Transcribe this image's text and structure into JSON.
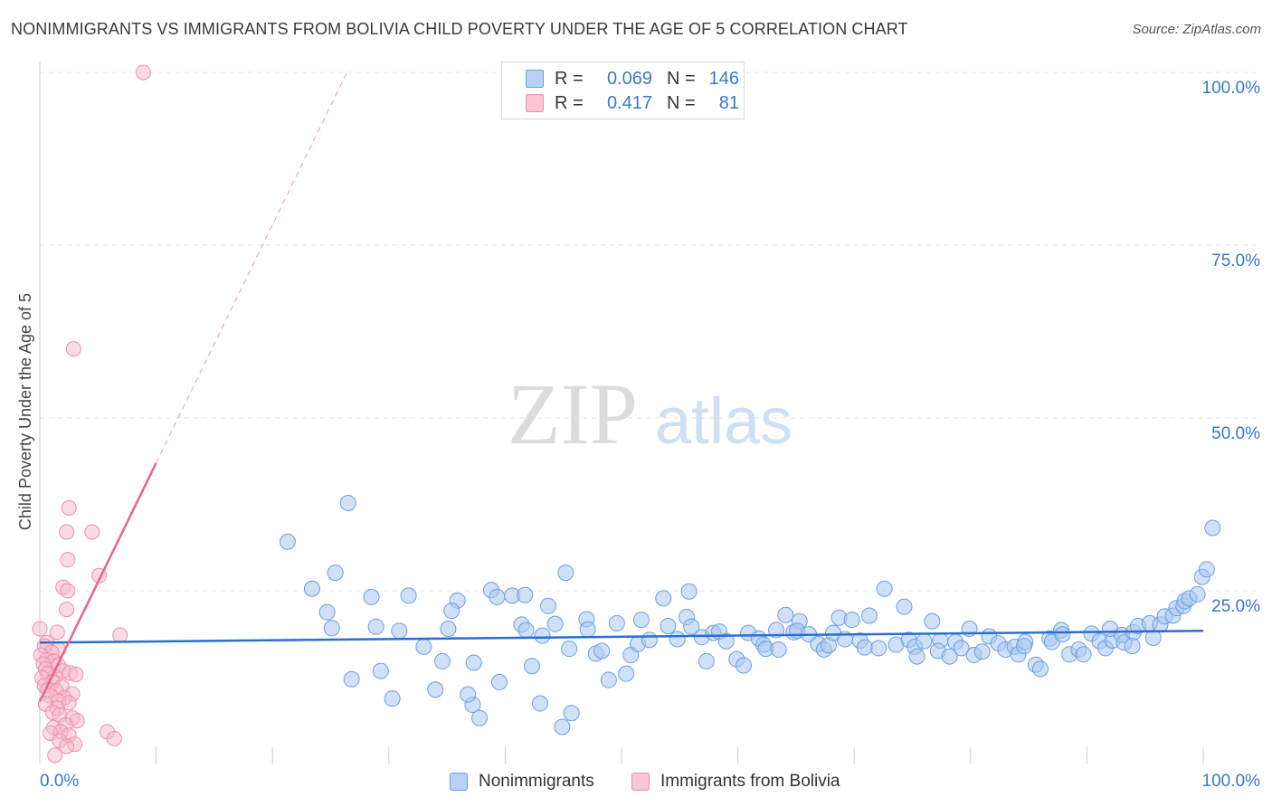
{
  "header": {
    "title": "NONIMMIGRANTS VS IMMIGRANTS FROM BOLIVIA CHILD POVERTY UNDER THE AGE OF 5 CORRELATION CHART",
    "source": "Source: ZipAtlas.com"
  },
  "colors": {
    "blue_fill": "#a9c8f0",
    "blue_stroke": "#6b9fe0",
    "blue_line": "#2a6fd1",
    "pink_fill": "#f6b8c9",
    "pink_stroke": "#ec8fab",
    "pink_line": "#e8648f",
    "axis_label_blue": "#3a78c9"
  },
  "legend": {
    "r_label": "R =",
    "n_label": "N =",
    "series": [
      {
        "r": "0.069",
        "n": "146"
      },
      {
        "r": "0.417",
        "n": "81"
      }
    ]
  },
  "bottom_legend": {
    "items": [
      "Nonimmigrants",
      "Immigrants from Bolivia"
    ]
  },
  "watermark": {
    "zip": "ZIP",
    "atlas": "atlas"
  },
  "chart_data": {
    "type": "scatter",
    "title": "NONIMMIGRANTS VS IMMIGRANTS FROM BOLIVIA CHILD POVERTY UNDER THE AGE OF 5 CORRELATION CHART",
    "xlabel": "",
    "ylabel": "Child Poverty Under the Age of 5",
    "xlim": [
      0,
      100
    ],
    "ylim": [
      0,
      100
    ],
    "x_tick_labels": [
      "0.0%",
      "100.0%"
    ],
    "y_tick_labels": [
      "25.0%",
      "50.0%",
      "75.0%",
      "100.0%"
    ],
    "y_ticks": [
      25,
      50,
      75,
      100
    ],
    "grid": true,
    "series": [
      {
        "name": "Nonimmigrants",
        "r": 0.069,
        "n": 146,
        "trend": {
          "x": [
            0,
            100
          ],
          "y": [
            17.5,
            19.2
          ]
        },
        "points": [
          [
            21.3,
            32.1
          ],
          [
            26.5,
            37.7
          ],
          [
            25.4,
            27.6
          ],
          [
            24.7,
            21.9
          ],
          [
            25.1,
            19.6
          ],
          [
            23.4,
            25.3
          ],
          [
            26.8,
            12.2
          ],
          [
            28.5,
            24.1
          ],
          [
            29.3,
            13.4
          ],
          [
            28.9,
            19.8
          ],
          [
            30.3,
            9.4
          ],
          [
            30.9,
            19.2
          ],
          [
            31.7,
            24.3
          ],
          [
            33.0,
            16.9
          ],
          [
            34.0,
            10.7
          ],
          [
            34.6,
            14.8
          ],
          [
            35.1,
            19.5
          ],
          [
            35.9,
            23.6
          ],
          [
            35.4,
            22.1
          ],
          [
            37.2,
            8.5
          ],
          [
            37.3,
            14.6
          ],
          [
            37.8,
            6.6
          ],
          [
            36.8,
            10.0
          ],
          [
            38.8,
            25.1
          ],
          [
            39.3,
            24.1
          ],
          [
            39.5,
            11.8
          ],
          [
            40.6,
            24.3
          ],
          [
            41.4,
            20.1
          ],
          [
            41.7,
            24.4
          ],
          [
            41.8,
            19.3
          ],
          [
            42.3,
            14.1
          ],
          [
            43.2,
            18.5
          ],
          [
            43.7,
            22.8
          ],
          [
            43.0,
            8.7
          ],
          [
            44.3,
            20.2
          ],
          [
            45.2,
            27.6
          ],
          [
            44.9,
            5.3
          ],
          [
            45.7,
            7.3
          ],
          [
            45.5,
            16.6
          ],
          [
            47.0,
            20.9
          ],
          [
            47.1,
            19.4
          ],
          [
            47.8,
            15.9
          ],
          [
            48.3,
            16.3
          ],
          [
            48.9,
            12.1
          ],
          [
            49.6,
            20.3
          ],
          [
            50.4,
            13.0
          ],
          [
            50.8,
            15.7
          ],
          [
            51.7,
            20.8
          ],
          [
            51.4,
            17.3
          ],
          [
            52.4,
            17.9
          ],
          [
            53.6,
            23.9
          ],
          [
            54.0,
            19.9
          ],
          [
            54.8,
            18.0
          ],
          [
            55.6,
            21.2
          ],
          [
            55.8,
            24.9
          ],
          [
            56.0,
            19.8
          ],
          [
            56.9,
            18.3
          ],
          [
            57.3,
            14.8
          ],
          [
            57.9,
            18.9
          ],
          [
            58.4,
            19.1
          ],
          [
            59.0,
            17.7
          ],
          [
            59.9,
            15.1
          ],
          [
            60.5,
            14.2
          ],
          [
            60.9,
            18.9
          ],
          [
            61.8,
            18.1
          ],
          [
            62.2,
            17.2
          ],
          [
            62.4,
            16.6
          ],
          [
            63.3,
            19.3
          ],
          [
            63.5,
            16.5
          ],
          [
            64.1,
            21.5
          ],
          [
            64.8,
            19.0
          ],
          [
            65.3,
            20.6
          ],
          [
            65.1,
            19.2
          ],
          [
            66.1,
            18.7
          ],
          [
            66.9,
            17.3
          ],
          [
            67.4,
            16.5
          ],
          [
            67.8,
            17.1
          ],
          [
            68.2,
            18.9
          ],
          [
            68.7,
            21.1
          ],
          [
            69.2,
            18.0
          ],
          [
            69.8,
            20.8
          ],
          [
            70.5,
            17.8
          ],
          [
            70.9,
            16.8
          ],
          [
            71.3,
            21.4
          ],
          [
            72.6,
            25.3
          ],
          [
            72.1,
            16.7
          ],
          [
            73.6,
            17.2
          ],
          [
            74.3,
            22.7
          ],
          [
            74.7,
            17.9
          ],
          [
            75.2,
            16.9
          ],
          [
            75.4,
            15.5
          ],
          [
            76.0,
            17.7
          ],
          [
            76.7,
            20.6
          ],
          [
            77.4,
            17.8
          ],
          [
            77.2,
            16.3
          ],
          [
            78.2,
            15.5
          ],
          [
            78.7,
            17.6
          ],
          [
            79.2,
            16.7
          ],
          [
            79.9,
            19.5
          ],
          [
            80.3,
            15.7
          ],
          [
            81.0,
            16.2
          ],
          [
            81.6,
            18.4
          ],
          [
            82.4,
            17.4
          ],
          [
            83.0,
            16.5
          ],
          [
            83.8,
            16.9
          ],
          [
            84.1,
            15.8
          ],
          [
            84.7,
            17.6
          ],
          [
            84.6,
            17.0
          ],
          [
            85.6,
            14.3
          ],
          [
            86.0,
            13.7
          ],
          [
            86.8,
            18.1
          ],
          [
            87.0,
            17.6
          ],
          [
            87.8,
            19.3
          ],
          [
            87.9,
            18.7
          ],
          [
            88.5,
            15.8
          ],
          [
            89.3,
            16.5
          ],
          [
            89.7,
            15.8
          ],
          [
            90.4,
            18.8
          ],
          [
            91.1,
            17.7
          ],
          [
            91.6,
            16.7
          ],
          [
            92.2,
            17.8
          ],
          [
            92.0,
            19.5
          ],
          [
            93.0,
            18.6
          ],
          [
            93.2,
            17.5
          ],
          [
            94.0,
            19.0
          ],
          [
            94.4,
            19.9
          ],
          [
            93.9,
            17.0
          ],
          [
            95.4,
            20.3
          ],
          [
            95.7,
            18.2
          ],
          [
            96.3,
            20.1
          ],
          [
            96.7,
            21.3
          ],
          [
            97.4,
            21.4
          ],
          [
            97.7,
            22.5
          ],
          [
            98.3,
            22.8
          ],
          [
            98.4,
            23.5
          ],
          [
            98.8,
            23.9
          ],
          [
            99.5,
            24.5
          ],
          [
            99.9,
            27.0
          ],
          [
            100.3,
            28.1
          ],
          [
            100.8,
            34.1
          ]
        ]
      },
      {
        "name": "Immigrants from Bolivia",
        "r": 0.417,
        "n": 81,
        "trend": {
          "x": [
            0,
            10
          ],
          "y": [
            9.0,
            43.5
          ],
          "x_dashed": [
            10,
            26.4
          ],
          "y_dashed": [
            43.5,
            100
          ]
        },
        "points": [
          [
            8.9,
            100
          ],
          [
            2.9,
            60
          ],
          [
            2.5,
            37
          ],
          [
            2.3,
            33.5
          ],
          [
            4.5,
            33.5
          ],
          [
            2.4,
            29.5
          ],
          [
            5.1,
            27.2
          ],
          [
            2.0,
            25.5
          ],
          [
            2.4,
            25.0
          ],
          [
            2.3,
            22.3
          ],
          [
            0.0,
            19.5
          ],
          [
            1.5,
            19.0
          ],
          [
            6.9,
            18.6
          ],
          [
            0.6,
            17.5
          ],
          [
            0.4,
            17.0
          ],
          [
            1.6,
            16.5
          ],
          [
            1.0,
            16.1
          ],
          [
            0.1,
            15.7
          ],
          [
            0.6,
            15.0
          ],
          [
            1.2,
            14.8
          ],
          [
            0.3,
            14.4
          ],
          [
            1.6,
            14.2
          ],
          [
            0.5,
            13.7
          ],
          [
            2.0,
            13.4
          ],
          [
            0.7,
            13.0
          ],
          [
            2.6,
            13.1
          ],
          [
            3.1,
            12.9
          ],
          [
            1.3,
            12.6
          ],
          [
            0.2,
            12.4
          ],
          [
            1.1,
            11.8
          ],
          [
            0.4,
            11.3
          ],
          [
            1.9,
            11.1
          ],
          [
            0.7,
            10.7
          ],
          [
            1.4,
            10.5
          ],
          [
            2.8,
            10.1
          ],
          [
            0.9,
            9.8
          ],
          [
            2.1,
            9.5
          ],
          [
            1.6,
            9.0
          ],
          [
            2.5,
            8.8
          ],
          [
            0.5,
            8.6
          ],
          [
            1.5,
            8.0
          ],
          [
            1.1,
            7.4
          ],
          [
            1.7,
            7.0
          ],
          [
            2.8,
            6.6
          ],
          [
            3.2,
            6.2
          ],
          [
            2.2,
            5.6
          ],
          [
            1.2,
            5.2
          ],
          [
            1.8,
            4.6
          ],
          [
            0.9,
            4.4
          ],
          [
            2.5,
            4.1
          ],
          [
            5.8,
            4.6
          ],
          [
            6.4,
            3.6
          ],
          [
            1.7,
            3.3
          ],
          [
            3.0,
            2.8
          ],
          [
            2.3,
            2.5
          ],
          [
            1.3,
            1.2
          ]
        ]
      }
    ]
  }
}
